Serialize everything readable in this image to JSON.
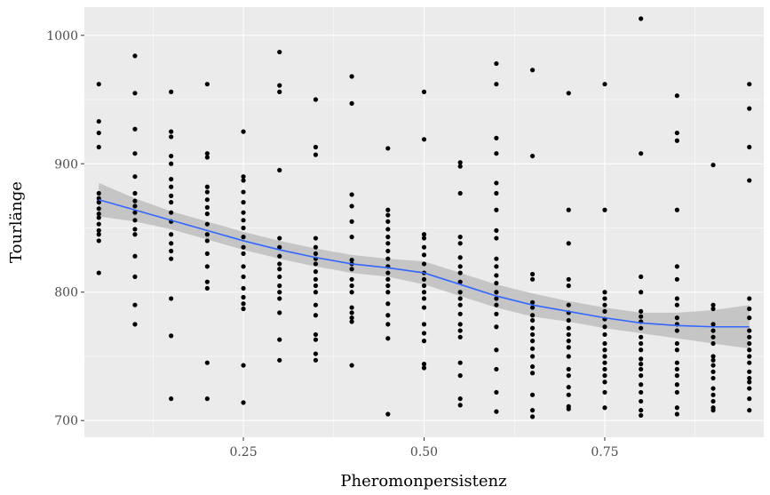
{
  "chart_data": {
    "type": "scatter",
    "title": "",
    "xlabel": "Pheromonpersistenz",
    "ylabel": "Tourlänge",
    "xlim": [
      0.03,
      0.97
    ],
    "ylim": [
      687,
      1022
    ],
    "x_ticks": [
      0.25,
      0.5,
      0.75
    ],
    "x_tick_labels": [
      "0.25",
      "0.50",
      "0.75"
    ],
    "y_ticks": [
      700,
      800,
      900,
      1000
    ],
    "y_tick_labels": [
      "700",
      "800",
      "900",
      "1000"
    ],
    "grid": true,
    "background": "#ebebeb",
    "point_color": "#000000",
    "smooth_color": "#3366ff",
    "ribbon_color": "#bebebe",
    "points": [
      {
        "x": 0.05,
        "values": [
          962,
          933,
          924,
          913,
          877,
          873,
          870,
          865,
          861,
          858,
          853,
          848,
          845,
          840,
          815
        ]
      },
      {
        "x": 0.1,
        "values": [
          984,
          955,
          927,
          908,
          890,
          877,
          871,
          867,
          862,
          856,
          849,
          845,
          828,
          812,
          790,
          775
        ]
      },
      {
        "x": 0.15,
        "values": [
          956,
          925,
          921,
          906,
          900,
          888,
          882,
          875,
          870,
          862,
          855,
          845,
          838,
          832,
          826,
          795,
          766,
          717
        ]
      },
      {
        "x": 0.2,
        "values": [
          962,
          908,
          905,
          882,
          878,
          872,
          866,
          861,
          853,
          845,
          840,
          830,
          820,
          808,
          803,
          745,
          717
        ]
      },
      {
        "x": 0.25,
        "values": [
          925,
          890,
          887,
          878,
          870,
          862,
          856,
          850,
          843,
          835,
          830,
          820,
          812,
          803,
          796,
          791,
          787,
          743,
          714
        ]
      },
      {
        "x": 0.3,
        "values": [
          987,
          961,
          956,
          895,
          842,
          835,
          828,
          822,
          818,
          812,
          805,
          800,
          795,
          784,
          763,
          747
        ]
      },
      {
        "x": 0.35,
        "values": [
          950,
          913,
          907,
          842,
          835,
          830,
          826,
          822,
          816,
          810,
          805,
          800,
          790,
          782,
          767,
          763,
          752,
          747
        ]
      },
      {
        "x": 0.4,
        "values": [
          968,
          947,
          876,
          867,
          855,
          843,
          825,
          822,
          818,
          810,
          805,
          800,
          788,
          784,
          780,
          777,
          743
        ]
      },
      {
        "x": 0.45,
        "values": [
          912,
          864,
          860,
          855,
          849,
          843,
          838,
          832,
          826,
          820,
          815,
          810,
          805,
          800,
          791,
          782,
          775,
          764,
          705
        ]
      },
      {
        "x": 0.5,
        "values": [
          956,
          919,
          845,
          842,
          835,
          829,
          822,
          815,
          810,
          805,
          800,
          795,
          788,
          775,
          768,
          762,
          744,
          741
        ]
      },
      {
        "x": 0.55,
        "values": [
          901,
          898,
          877,
          843,
          838,
          827,
          820,
          815,
          808,
          800,
          795,
          790,
          783,
          775,
          770,
          765,
          745,
          735,
          717,
          712
        ]
      },
      {
        "x": 0.6,
        "values": [
          978,
          962,
          920,
          908,
          885,
          877,
          864,
          848,
          842,
          826,
          820,
          813,
          807,
          800,
          795,
          790,
          783,
          773,
          755,
          740,
          722,
          707
        ]
      },
      {
        "x": 0.65,
        "values": [
          973,
          906,
          814,
          810,
          792,
          788,
          782,
          778,
          772,
          767,
          762,
          756,
          750,
          742,
          737,
          720,
          708,
          703
        ]
      },
      {
        "x": 0.7,
        "values": [
          955,
          864,
          838,
          810,
          805,
          790,
          784,
          778,
          772,
          767,
          762,
          757,
          750,
          740,
          735,
          726,
          720,
          711,
          709
        ]
      },
      {
        "x": 0.75,
        "values": [
          962,
          864,
          800,
          795,
          790,
          785,
          779,
          773,
          767,
          760,
          755,
          750,
          745,
          740,
          735,
          730,
          722,
          710
        ]
      },
      {
        "x": 0.8,
        "values": [
          1013,
          908,
          812,
          800,
          785,
          781,
          777,
          772,
          765,
          760,
          755,
          748,
          744,
          740,
          735,
          728,
          722,
          715,
          708,
          704
        ]
      },
      {
        "x": 0.85,
        "values": [
          953,
          924,
          918,
          864,
          820,
          810,
          795,
          790,
          780,
          775,
          770,
          760,
          755,
          745,
          740,
          735,
          728,
          722,
          710,
          705
        ]
      },
      {
        "x": 0.9,
        "values": [
          899,
          790,
          787,
          775,
          770,
          765,
          760,
          750,
          747,
          743,
          738,
          733,
          725,
          720,
          715,
          710,
          708
        ]
      },
      {
        "x": 0.95,
        "values": [
          962,
          943,
          913,
          887,
          795,
          787,
          780,
          770,
          765,
          760,
          755,
          750,
          745,
          738,
          733,
          730,
          725,
          717,
          708
        ]
      }
    ],
    "smooth_line": {
      "x": [
        0.05,
        0.1,
        0.15,
        0.2,
        0.25,
        0.3,
        0.35,
        0.4,
        0.45,
        0.5,
        0.55,
        0.6,
        0.65,
        0.7,
        0.75,
        0.8,
        0.85,
        0.9,
        0.95
      ],
      "y": [
        872,
        864,
        856,
        848,
        840,
        833,
        827,
        822,
        819,
        815,
        806,
        797,
        790,
        785,
        780,
        776,
        774,
        773,
        773
      ],
      "upper": [
        885,
        873,
        863,
        855,
        847,
        840,
        834,
        829,
        826,
        824,
        815,
        806,
        799,
        793,
        788,
        784,
        784,
        786,
        790
      ],
      "lower": [
        859,
        855,
        849,
        841,
        833,
        826,
        820,
        815,
        812,
        806,
        797,
        788,
        781,
        777,
        772,
        768,
        764,
        760,
        756
      ]
    }
  }
}
